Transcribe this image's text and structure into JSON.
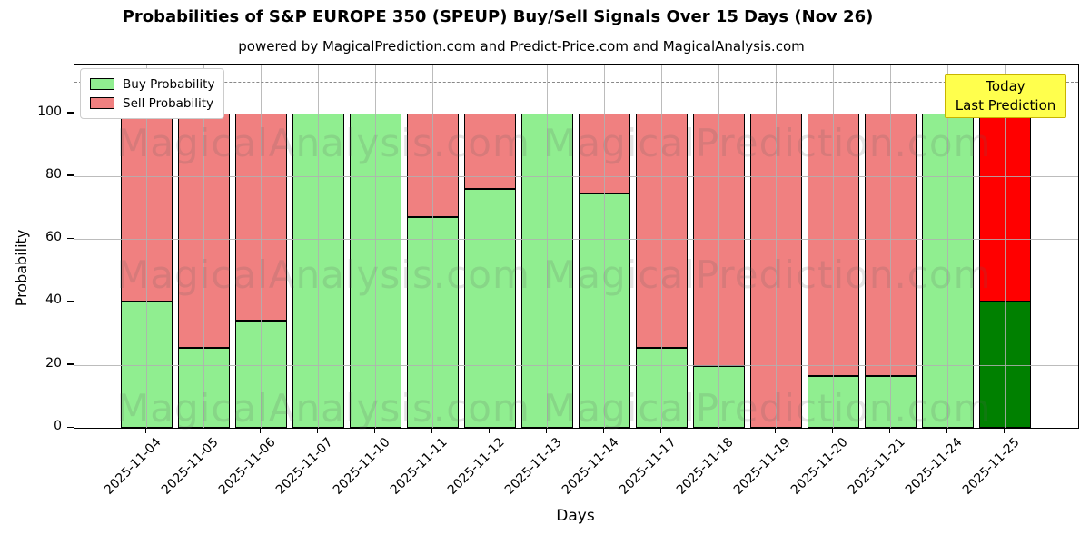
{
  "header": {
    "title": "Probabilities of S&P EUROPE 350 (SPEUP) Buy/Sell Signals Over 15 Days (Nov 26)",
    "subtitle": "powered by MagicalPrediction.com and Predict-Price.com and MagicalAnalysis.com"
  },
  "legend": {
    "buy_label": "Buy Probability",
    "sell_label": "Sell Probability"
  },
  "annotation_box": {
    "line1": "Today",
    "line2": "Last Prediction"
  },
  "axes": {
    "ylabel": "Probability",
    "xlabel": "Days",
    "yticks": [
      0,
      20,
      40,
      60,
      80,
      100
    ],
    "ylim": [
      0,
      115
    ],
    "dashed_guide_y": 110,
    "grid": "on"
  },
  "watermarks": {
    "left_text": "MagicalAnalysis.com",
    "right_text": "MagicalPrediction.com"
  },
  "colors": {
    "buy": "#90EE90",
    "sell": "#F08080",
    "buy_today": "#008000",
    "sell_today": "#FF0000",
    "bar_edge": "#000000",
    "grid": "rgba(176,176,176,0.85)",
    "dashed_guide": "#888888",
    "annotation_bg": "#FFFF4D",
    "annotation_border": "#C8B400",
    "watermark": "rgba(95,95,95,0.17)"
  },
  "chart_data": {
    "type": "bar",
    "stacked": true,
    "title": "Probabilities of S&P EUROPE 350 (SPEUP) Buy/Sell Signals Over 15 Days (Nov 26)",
    "xlabel": "Days",
    "ylabel": "Probability",
    "ylim": [
      0,
      115
    ],
    "legend_position": "upper left",
    "categories": [
      "2025-11-04",
      "2025-11-05",
      "2025-11-06",
      "2025-11-07",
      "2025-11-10",
      "2025-11-11",
      "2025-11-12",
      "2025-11-13",
      "2025-11-14",
      "2025-11-17",
      "2025-11-18",
      "2025-11-19",
      "2025-11-20",
      "2025-11-21",
      "2025-11-24",
      "2025-11-25"
    ],
    "series": [
      {
        "name": "Buy Probability",
        "values": [
          40,
          25.5,
          34,
          100,
          100,
          67,
          76,
          100,
          74.5,
          25.5,
          19.5,
          0,
          16.5,
          16.5,
          100,
          40
        ]
      },
      {
        "name": "Sell Probability",
        "values": [
          60,
          74.5,
          66,
          0,
          0,
          33,
          24,
          0,
          25.5,
          74.5,
          80.5,
          100,
          83.5,
          83.5,
          0,
          60
        ]
      }
    ],
    "highlighted_last_bar": {
      "category": "2025-11-25",
      "buy": 40,
      "sell": 60,
      "note": "Today / Last Prediction"
    }
  }
}
